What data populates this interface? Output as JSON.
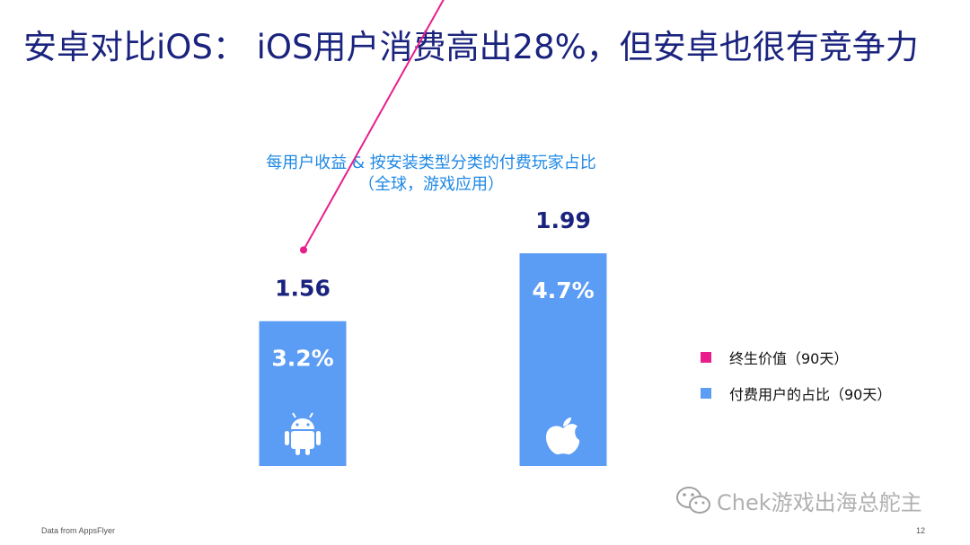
{
  "slide": {
    "title": "安卓对比iOS： iOS用户消费高出28%，但安卓也很有竞争力",
    "source": "Data from AppsFlyer",
    "page_number": "12",
    "watermark": "Chek游戏出海总舵主"
  },
  "chart_data": {
    "type": "bar",
    "title": "每用户收益 & 按安装类型分类的付费玩家占比",
    "subtitle": "（全球，游戏应用）",
    "categories": [
      "Android",
      "iOS"
    ],
    "category_icons": [
      "android-icon",
      "apple-icon"
    ],
    "series": [
      {
        "name": "终生价值（90天）",
        "type": "line",
        "color": "#e91e8c",
        "values": [
          1.56,
          1.99
        ],
        "labels": [
          "1.56",
          "1.99"
        ]
      },
      {
        "name": "付费用户的占比（90天）",
        "type": "bar",
        "color": "#5b9cf5",
        "values": [
          3.2,
          4.7
        ],
        "labels": [
          "3.2%",
          "4.7%"
        ]
      }
    ],
    "grid": false,
    "legend_position": "right"
  }
}
